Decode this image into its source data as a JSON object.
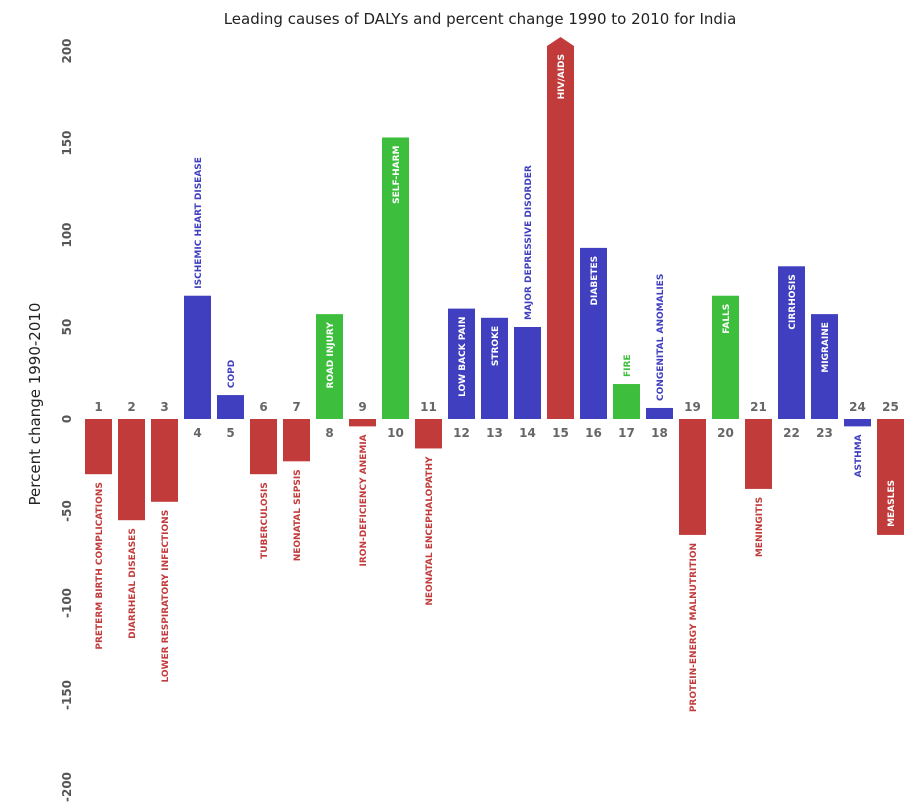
{
  "chart_data": {
    "type": "bar",
    "title": "Leading causes of DALYs and percent change 1990 to 2010 for India",
    "ylabel": "Percent change 1990-2010",
    "ylim": [
      -200,
      200
    ],
    "yticks": [
      "200",
      "150",
      "100",
      "50",
      "0",
      "-50",
      "-100",
      "-150",
      "-200"
    ],
    "colors": {
      "communicable": "#c23b3b",
      "non_communicable": "#3f3fbf",
      "injuries": "#3dbf3d"
    },
    "bars": [
      {
        "rank": "1",
        "name": "PRETERM BIRTH COMPLICATIONS",
        "value": -30,
        "group": "communicable"
      },
      {
        "rank": "2",
        "name": "DIARRHEAL DISEASES",
        "value": -55,
        "group": "communicable"
      },
      {
        "rank": "3",
        "name": "LOWER RESPIRATORY INFECTIONS",
        "value": -45,
        "group": "communicable"
      },
      {
        "rank": "4",
        "name": "ISCHEMIC HEART DISEASE",
        "value": 67,
        "group": "non_communicable"
      },
      {
        "rank": "5",
        "name": "COPD",
        "value": 13,
        "group": "non_communicable"
      },
      {
        "rank": "6",
        "name": "TUBERCULOSIS",
        "value": -30,
        "group": "communicable"
      },
      {
        "rank": "7",
        "name": "NEONATAL SEPSIS",
        "value": -23,
        "group": "communicable"
      },
      {
        "rank": "8",
        "name": "ROAD INJURY",
        "value": 57,
        "group": "injuries"
      },
      {
        "rank": "9",
        "name": "IRON-DEFICIENCY ANEMIA",
        "value": -4,
        "group": "communicable"
      },
      {
        "rank": "10",
        "name": "SELF-HARM",
        "value": 153,
        "group": "injuries"
      },
      {
        "rank": "11",
        "name": "NEONATAL ENCEPHALOPATHY",
        "value": -16,
        "group": "communicable"
      },
      {
        "rank": "12",
        "name": "LOW BACK PAIN",
        "value": 60,
        "group": "non_communicable"
      },
      {
        "rank": "13",
        "name": "STROKE",
        "value": 55,
        "group": "non_communicable"
      },
      {
        "rank": "14",
        "name": "MAJOR DEPRESSIVE DISORDER",
        "value": 50,
        "group": "non_communicable"
      },
      {
        "rank": "15",
        "name": "HIV/AIDS",
        "value": 205,
        "group": "communicable"
      },
      {
        "rank": "16",
        "name": "DIABETES",
        "value": 93,
        "group": "non_communicable"
      },
      {
        "rank": "17",
        "name": "FIRE",
        "value": 19,
        "group": "injuries"
      },
      {
        "rank": "18",
        "name": "CONGENITAL ANOMALIES",
        "value": 6,
        "group": "non_communicable"
      },
      {
        "rank": "19",
        "name": "PROTEIN-ENERGY MALNUTRITION",
        "value": -63,
        "group": "communicable"
      },
      {
        "rank": "20",
        "name": "FALLS",
        "value": 67,
        "group": "injuries"
      },
      {
        "rank": "21",
        "name": "MENINGITIS",
        "value": -38,
        "group": "communicable"
      },
      {
        "rank": "22",
        "name": "CIRRHOSIS",
        "value": 83,
        "group": "non_communicable"
      },
      {
        "rank": "23",
        "name": "MIGRAINE",
        "value": 57,
        "group": "non_communicable"
      },
      {
        "rank": "24",
        "name": "ASTHMA",
        "value": -4,
        "group": "non_communicable"
      },
      {
        "rank": "25",
        "name": "MEASLES",
        "value": -63,
        "group": "communicable"
      }
    ]
  }
}
